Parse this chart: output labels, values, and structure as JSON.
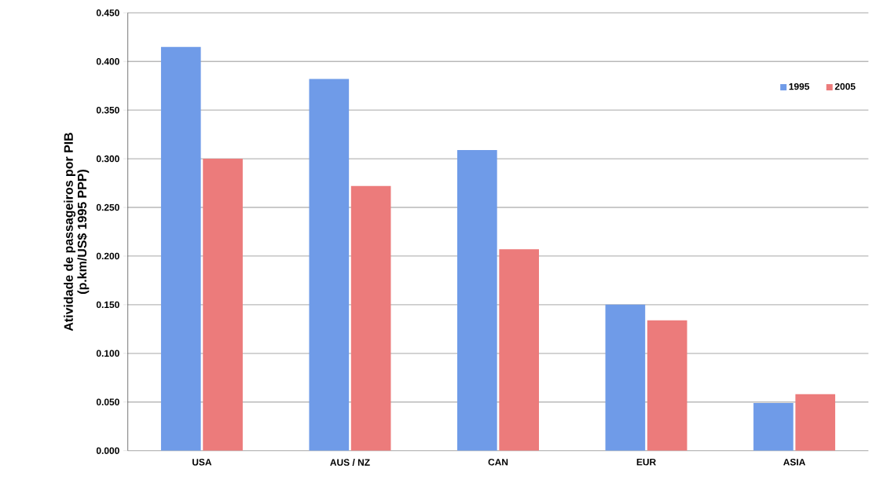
{
  "chart_data": {
    "type": "bar",
    "ylabel": "Atividade de passageiros por PIB\n(p.km/US$ 1995 PPP)",
    "categories": [
      "USA",
      "AUS / NZ",
      "CAN",
      "EUR",
      "ASIA"
    ],
    "series": [
      {
        "name": "1995",
        "color": "#6f9be8",
        "values": [
          0.415,
          0.382,
          0.309,
          0.15,
          0.049
        ]
      },
      {
        "name": "2005",
        "color": "#ec7b7b",
        "values": [
          0.3,
          0.272,
          0.207,
          0.134,
          0.058
        ]
      }
    ],
    "ylim": [
      0,
      0.45
    ],
    "yticks": [
      {
        "value": 0,
        "label": "0.000"
      },
      {
        "value": 0.05,
        "label": "0.050"
      },
      {
        "value": 0.1,
        "label": "0.100"
      },
      {
        "value": 0.15,
        "label": "0.150"
      },
      {
        "value": 0.2,
        "label": "0.200"
      },
      {
        "value": 0.25,
        "label": "0.250"
      },
      {
        "value": 0.3,
        "label": "0.300"
      },
      {
        "value": 0.35,
        "label": "0.350"
      },
      {
        "value": 0.4,
        "label": "0.400"
      },
      {
        "value": 0.45,
        "label": "0.450"
      }
    ],
    "grid": "y",
    "legend": "top right",
    "marker": "square"
  }
}
